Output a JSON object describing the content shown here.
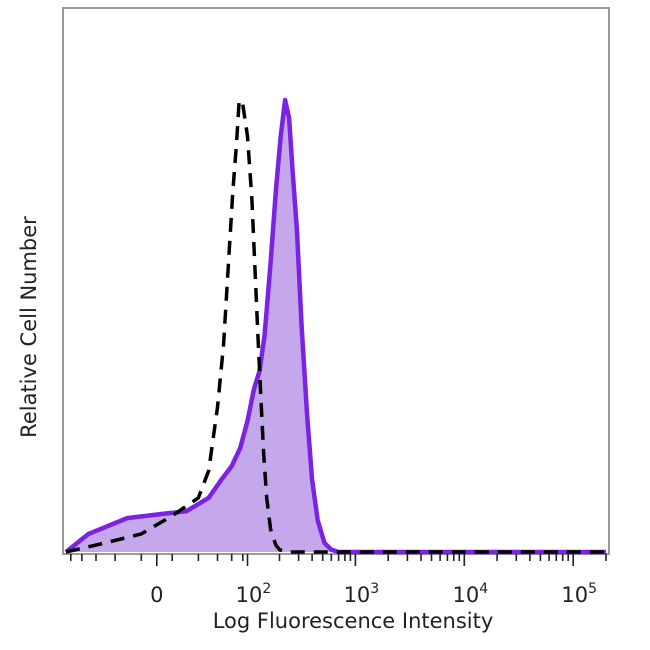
{
  "chart_data": {
    "type": "area",
    "xlabel": "Log Fluorescence Intensity",
    "ylabel": "Relative Cell Number",
    "x_scale": "biexponential",
    "x_ticks": [
      {
        "value": 0,
        "base": "0",
        "exp": ""
      },
      {
        "value": 100,
        "base": "10",
        "exp": "2"
      },
      {
        "value": 1000,
        "base": "10",
        "exp": "3"
      },
      {
        "value": 10000,
        "base": "10",
        "exp": "4"
      },
      {
        "value": 100000,
        "base": "10",
        "exp": "5"
      }
    ],
    "xlim": [
      -100,
      200000
    ],
    "ylim": [
      0,
      100
    ],
    "grid": false,
    "legend": "none",
    "series": [
      {
        "style": "dashed",
        "color": "#000000",
        "points": [
          [
            -100,
            0
          ],
          [
            -40,
            2
          ],
          [
            -10,
            4
          ],
          [
            10,
            8
          ],
          [
            30,
            12
          ],
          [
            40,
            18
          ],
          [
            50,
            32
          ],
          [
            58,
            46
          ],
          [
            65,
            64
          ],
          [
            72,
            80
          ],
          [
            78,
            90
          ],
          [
            83,
            100
          ],
          [
            90,
            99
          ],
          [
            100,
            92
          ],
          [
            110,
            78
          ],
          [
            118,
            62
          ],
          [
            126,
            47
          ],
          [
            134,
            34
          ],
          [
            142,
            22
          ],
          [
            152,
            12
          ],
          [
            165,
            5
          ],
          [
            185,
            1.5
          ],
          [
            200,
            0.5
          ],
          [
            230,
            0
          ],
          [
            200000,
            0
          ]
        ]
      },
      {
        "style": "filled",
        "color": "#7b22e3",
        "fill": "#c5a7ec",
        "points": [
          [
            -100,
            0
          ],
          [
            -60,
            4
          ],
          [
            -20,
            7.5
          ],
          [
            5,
            8.5
          ],
          [
            20,
            9
          ],
          [
            40,
            12
          ],
          [
            55,
            16
          ],
          [
            70,
            19
          ],
          [
            85,
            23
          ],
          [
            100,
            29
          ],
          [
            115,
            36
          ],
          [
            130,
            40
          ],
          [
            145,
            48
          ],
          [
            165,
            64
          ],
          [
            185,
            80
          ],
          [
            205,
            92
          ],
          [
            225,
            100
          ],
          [
            245,
            96
          ],
          [
            265,
            84
          ],
          [
            290,
            71
          ],
          [
            320,
            50
          ],
          [
            360,
            30
          ],
          [
            400,
            16
          ],
          [
            450,
            7
          ],
          [
            520,
            2
          ],
          [
            600,
            0.5
          ],
          [
            700,
            0
          ],
          [
            200000,
            0
          ]
        ]
      }
    ]
  }
}
